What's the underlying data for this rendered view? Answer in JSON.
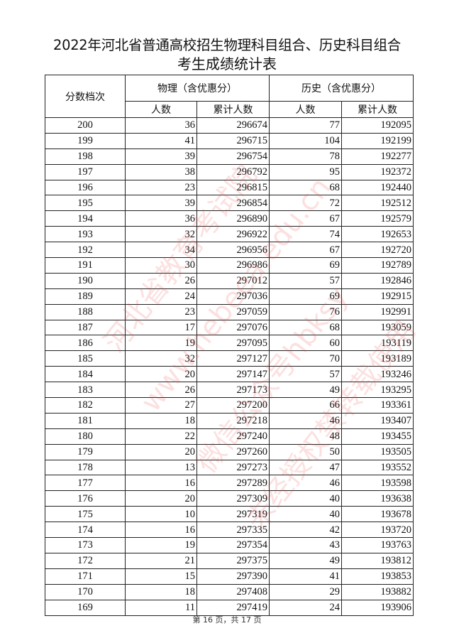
{
  "title_line1": "2022年河北省普通高校招生物理科目组合、历史科目组合",
  "title_line2": "考生成绩统计表",
  "headers": {
    "score": "分数档次",
    "physics": "物理（含优惠分）",
    "history": "历史（含优惠分）",
    "count": "人数",
    "cumulative": "累计人数"
  },
  "rows": [
    [
      "200",
      "36",
      "296674",
      "77",
      "192095"
    ],
    [
      "199",
      "41",
      "296715",
      "104",
      "192199"
    ],
    [
      "198",
      "39",
      "296754",
      "78",
      "192277"
    ],
    [
      "197",
      "38",
      "296792",
      "95",
      "192372"
    ],
    [
      "196",
      "23",
      "296815",
      "68",
      "192440"
    ],
    [
      "195",
      "39",
      "296854",
      "72",
      "192512"
    ],
    [
      "194",
      "36",
      "296890",
      "67",
      "192579"
    ],
    [
      "193",
      "32",
      "296922",
      "74",
      "192653"
    ],
    [
      "192",
      "34",
      "296956",
      "67",
      "192720"
    ],
    [
      "191",
      "30",
      "296986",
      "69",
      "192789"
    ],
    [
      "190",
      "26",
      "297012",
      "57",
      "192846"
    ],
    [
      "189",
      "24",
      "297036",
      "69",
      "192915"
    ],
    [
      "188",
      "23",
      "297059",
      "76",
      "192991"
    ],
    [
      "187",
      "17",
      "297076",
      "68",
      "193059"
    ],
    [
      "186",
      "19",
      "297095",
      "60",
      "193119"
    ],
    [
      "185",
      "32",
      "297127",
      "70",
      "193189"
    ],
    [
      "184",
      "20",
      "297147",
      "57",
      "193246"
    ],
    [
      "183",
      "26",
      "297173",
      "49",
      "193295"
    ],
    [
      "182",
      "27",
      "297200",
      "66",
      "193361"
    ],
    [
      "181",
      "18",
      "297218",
      "46",
      "193407"
    ],
    [
      "180",
      "22",
      "297240",
      "48",
      "193455"
    ],
    [
      "179",
      "20",
      "297260",
      "50",
      "193505"
    ],
    [
      "178",
      "13",
      "297273",
      "47",
      "193552"
    ],
    [
      "177",
      "16",
      "297289",
      "46",
      "193598"
    ],
    [
      "176",
      "20",
      "297309",
      "40",
      "193638"
    ],
    [
      "175",
      "10",
      "297319",
      "40",
      "193678"
    ],
    [
      "174",
      "16",
      "297335",
      "42",
      "193720"
    ],
    [
      "173",
      "19",
      "297354",
      "43",
      "193763"
    ],
    [
      "172",
      "21",
      "297375",
      "49",
      "193812"
    ],
    [
      "171",
      "15",
      "297390",
      "41",
      "193853"
    ],
    [
      "170",
      "18",
      "297408",
      "29",
      "193882"
    ],
    [
      "169",
      "11",
      "297419",
      "24",
      "193906"
    ]
  ],
  "footer": "第 16 页，共 17 页",
  "watermark": [
    "河北省教育考试院",
    "www.hebeea.edu.cn",
    "微信公众号hbksy",
    "未经授权禁转载使用"
  ],
  "watermark_color": "#eb3c3c"
}
